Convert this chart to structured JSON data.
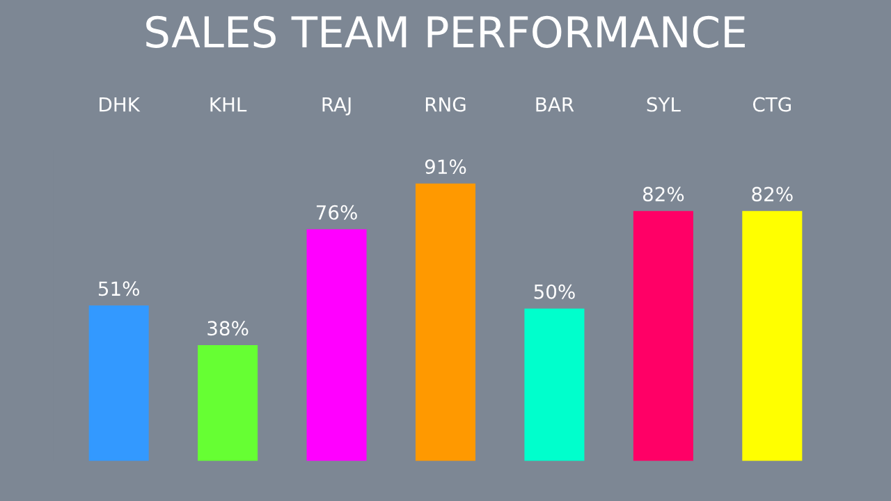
{
  "chart_data": {
    "type": "bar",
    "title": "SALES TEAM PERFORMANCE",
    "categories": [
      "DHK",
      "KHL",
      "RAJ",
      "RNG",
      "BAR",
      "SYL",
      "CTG"
    ],
    "values": [
      51,
      38,
      76,
      91,
      50,
      82,
      82
    ],
    "value_labels": [
      "51%",
      "38%",
      "76%",
      "91%",
      "50%",
      "82%",
      "82%"
    ],
    "colors": [
      "#3399ff",
      "#66ff33",
      "#ff00ff",
      "#ff9900",
      "#00ffcc",
      "#ff0066",
      "#ffff00"
    ],
    "grid": false,
    "legend": false
  }
}
